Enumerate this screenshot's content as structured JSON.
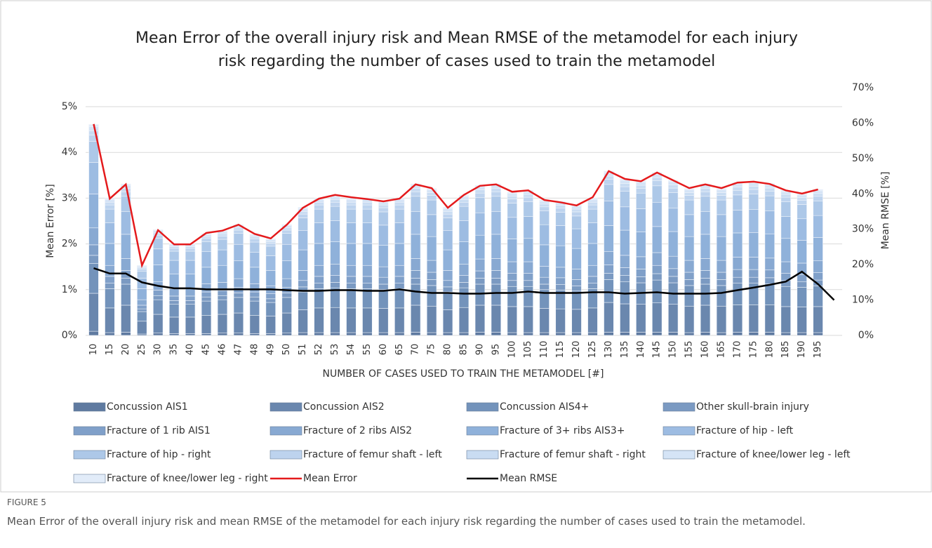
{
  "chart_data": {
    "type": "stacked_bar_line",
    "title": [
      "Mean Error of the overall injury risk and Mean RMSE of the metamodel for each injury",
      "risk regarding the number of cases used to train the metamodel"
    ],
    "ylabel": "Mean Error [%]",
    "y2label": "Mean RMSE [%]",
    "xlabel": "NUMBER OF CASES USED TO TRAIN THE METAMODEL [#]",
    "categories": [
      "10",
      "15",
      "20",
      "25",
      "30",
      "35",
      "40",
      "45",
      "46",
      "47",
      "48",
      "49",
      "50",
      "51",
      "52",
      "53",
      "54",
      "55",
      "60",
      "65",
      "70",
      "75",
      "80",
      "85",
      "90",
      "95",
      "100",
      "105",
      "110",
      "115",
      "120",
      "125",
      "130",
      "135",
      "140",
      "145",
      "150",
      "155",
      "160",
      "165",
      "170",
      "175",
      "180",
      "185",
      "190",
      "195",
      null
    ],
    "ylim": [
      0,
      5
    ],
    "yticks": [
      {
        "value": 0,
        "label": "0%"
      },
      {
        "value": 1,
        "label": "1%"
      },
      {
        "value": 2,
        "label": "2%"
      },
      {
        "value": 3,
        "label": "3%"
      },
      {
        "value": 4,
        "label": "4%"
      },
      {
        "value": 5,
        "label": "5%"
      }
    ],
    "y2lim": [
      0,
      70
    ],
    "y2ticks": [
      {
        "value": 0,
        "label": "0%"
      },
      {
        "value": 10,
        "label": "10%"
      },
      {
        "value": 20,
        "label": "20%"
      },
      {
        "value": 30,
        "label": "30%"
      },
      {
        "value": 40,
        "label": "40%"
      },
      {
        "value": 50,
        "label": "50%"
      },
      {
        "value": 60,
        "label": "60%"
      },
      {
        "value": 70,
        "label": "70%"
      }
    ],
    "series": [
      {
        "name": "Concussion AIS1",
        "color": "#5f7aa0",
        "values": [
          0.09,
          0.06,
          0.07,
          0.03,
          0.05,
          0.04,
          0.04,
          0.04,
          0.05,
          0.05,
          0.04,
          0.04,
          0.05,
          0.06,
          0.06,
          0.06,
          0.06,
          0.06,
          0.06,
          0.06,
          0.07,
          0.06,
          0.06,
          0.06,
          0.07,
          0.07,
          0.06,
          0.06,
          0.06,
          0.06,
          0.06,
          0.06,
          0.07,
          0.07,
          0.07,
          0.07,
          0.07,
          0.06,
          0.07,
          0.06,
          0.07,
          0.07,
          0.07,
          0.06,
          0.06,
          0.06,
          null
        ]
      },
      {
        "name": "Concussion AIS2",
        "color": "#6a87ae",
        "values": [
          0.83,
          0.54,
          0.59,
          0.28,
          0.41,
          0.36,
          0.36,
          0.4,
          0.41,
          0.44,
          0.4,
          0.38,
          0.44,
          0.5,
          0.54,
          0.55,
          0.54,
          0.54,
          0.53,
          0.54,
          0.59,
          0.58,
          0.5,
          0.55,
          0.59,
          0.59,
          0.57,
          0.57,
          0.53,
          0.52,
          0.51,
          0.54,
          0.65,
          0.62,
          0.61,
          0.64,
          0.61,
          0.58,
          0.59,
          0.58,
          0.6,
          0.6,
          0.6,
          0.57,
          0.56,
          0.57,
          null
        ]
      },
      {
        "name": "Concussion AIS4+",
        "color": "#7393bb",
        "values": [
          0.65,
          0.42,
          0.46,
          0.21,
          0.32,
          0.28,
          0.28,
          0.31,
          0.32,
          0.34,
          0.31,
          0.3,
          0.34,
          0.39,
          0.42,
          0.43,
          0.42,
          0.42,
          0.41,
          0.42,
          0.46,
          0.45,
          0.39,
          0.43,
          0.46,
          0.46,
          0.44,
          0.44,
          0.41,
          0.41,
          0.4,
          0.42,
          0.5,
          0.48,
          0.47,
          0.5,
          0.47,
          0.45,
          0.46,
          0.45,
          0.47,
          0.47,
          0.46,
          0.44,
          0.43,
          0.45,
          null
        ]
      },
      {
        "name": "Other skull-brain injury",
        "color": "#7b9ac2",
        "values": [
          0.18,
          0.12,
          0.13,
          0.06,
          0.09,
          0.08,
          0.08,
          0.09,
          0.09,
          0.1,
          0.09,
          0.08,
          0.1,
          0.11,
          0.12,
          0.12,
          0.12,
          0.12,
          0.12,
          0.12,
          0.13,
          0.13,
          0.11,
          0.12,
          0.13,
          0.13,
          0.13,
          0.13,
          0.12,
          0.12,
          0.11,
          0.12,
          0.14,
          0.14,
          0.13,
          0.14,
          0.14,
          0.13,
          0.13,
          0.13,
          0.13,
          0.13,
          0.13,
          0.13,
          0.12,
          0.13,
          null
        ]
      },
      {
        "name": "Fracture of 1 rib AIS1",
        "color": "#80a0c9",
        "values": [
          0.23,
          0.15,
          0.17,
          0.08,
          0.12,
          0.1,
          0.1,
          0.11,
          0.11,
          0.12,
          0.11,
          0.11,
          0.12,
          0.14,
          0.15,
          0.15,
          0.15,
          0.15,
          0.15,
          0.15,
          0.17,
          0.16,
          0.14,
          0.15,
          0.16,
          0.17,
          0.16,
          0.16,
          0.15,
          0.15,
          0.14,
          0.15,
          0.18,
          0.17,
          0.17,
          0.18,
          0.17,
          0.16,
          0.17,
          0.16,
          0.17,
          0.17,
          0.17,
          0.16,
          0.16,
          0.16,
          null
        ]
      },
      {
        "name": "Fracture of 2 ribs AIS2",
        "color": "#88a9d2",
        "values": [
          0.37,
          0.24,
          0.26,
          0.12,
          0.18,
          0.16,
          0.16,
          0.18,
          0.18,
          0.19,
          0.18,
          0.17,
          0.19,
          0.22,
          0.24,
          0.25,
          0.24,
          0.24,
          0.23,
          0.24,
          0.26,
          0.26,
          0.22,
          0.25,
          0.26,
          0.26,
          0.25,
          0.25,
          0.24,
          0.23,
          0.23,
          0.24,
          0.29,
          0.27,
          0.27,
          0.28,
          0.27,
          0.26,
          0.26,
          0.26,
          0.27,
          0.27,
          0.26,
          0.25,
          0.25,
          0.26,
          null
        ]
      },
      {
        "name": "Fracture of 3+ ribs AIS3+",
        "color": "#8fb1da",
        "values": [
          0.74,
          0.48,
          0.53,
          0.24,
          0.37,
          0.32,
          0.32,
          0.36,
          0.37,
          0.39,
          0.36,
          0.34,
          0.39,
          0.45,
          0.48,
          0.49,
          0.48,
          0.48,
          0.47,
          0.48,
          0.53,
          0.52,
          0.45,
          0.49,
          0.52,
          0.53,
          0.5,
          0.51,
          0.47,
          0.47,
          0.45,
          0.48,
          0.57,
          0.55,
          0.54,
          0.57,
          0.54,
          0.52,
          0.53,
          0.52,
          0.53,
          0.54,
          0.53,
          0.51,
          0.5,
          0.51,
          null
        ]
      },
      {
        "name": "Fracture of hip - left",
        "color": "#9dbce2",
        "values": [
          0.69,
          0.45,
          0.5,
          0.23,
          0.35,
          0.3,
          0.3,
          0.34,
          0.34,
          0.36,
          0.33,
          0.32,
          0.36,
          0.42,
          0.45,
          0.46,
          0.45,
          0.45,
          0.44,
          0.45,
          0.5,
          0.48,
          0.42,
          0.46,
          0.49,
          0.5,
          0.47,
          0.48,
          0.44,
          0.44,
          0.43,
          0.45,
          0.54,
          0.51,
          0.51,
          0.53,
          0.51,
          0.48,
          0.5,
          0.48,
          0.5,
          0.5,
          0.5,
          0.48,
          0.47,
          0.48,
          null
        ]
      },
      {
        "name": "Fracture of hip - right",
        "color": "#adc8e8",
        "values": [
          0.46,
          0.3,
          0.33,
          0.15,
          0.23,
          0.2,
          0.2,
          0.22,
          0.23,
          0.24,
          0.22,
          0.21,
          0.24,
          0.28,
          0.3,
          0.31,
          0.3,
          0.3,
          0.29,
          0.3,
          0.33,
          0.32,
          0.28,
          0.31,
          0.33,
          0.33,
          0.31,
          0.32,
          0.3,
          0.29,
          0.28,
          0.3,
          0.36,
          0.34,
          0.34,
          0.36,
          0.34,
          0.32,
          0.33,
          0.32,
          0.33,
          0.34,
          0.33,
          0.32,
          0.31,
          0.32,
          null
        ]
      },
      {
        "name": "Fracture of femur shaft - left",
        "color": "#bdd3ee",
        "values": [
          0.14,
          0.09,
          0.1,
          0.05,
          0.07,
          0.06,
          0.06,
          0.07,
          0.07,
          0.07,
          0.07,
          0.06,
          0.07,
          0.08,
          0.09,
          0.09,
          0.09,
          0.09,
          0.09,
          0.09,
          0.1,
          0.1,
          0.08,
          0.09,
          0.1,
          0.1,
          0.09,
          0.1,
          0.09,
          0.09,
          0.09,
          0.09,
          0.11,
          0.1,
          0.1,
          0.11,
          0.1,
          0.1,
          0.1,
          0.1,
          0.1,
          0.1,
          0.1,
          0.1,
          0.09,
          0.1,
          null
        ]
      },
      {
        "name": "Fracture of femur shaft - right",
        "color": "#c9dcf2",
        "values": [
          0.09,
          0.06,
          0.07,
          0.03,
          0.05,
          0.04,
          0.04,
          0.04,
          0.05,
          0.05,
          0.04,
          0.04,
          0.05,
          0.06,
          0.06,
          0.06,
          0.06,
          0.06,
          0.06,
          0.06,
          0.07,
          0.06,
          0.06,
          0.06,
          0.07,
          0.07,
          0.06,
          0.06,
          0.06,
          0.06,
          0.06,
          0.06,
          0.07,
          0.07,
          0.07,
          0.07,
          0.07,
          0.06,
          0.07,
          0.06,
          0.07,
          0.07,
          0.07,
          0.06,
          0.06,
          0.06,
          null
        ]
      },
      {
        "name": "Fracture of knee/lower leg - left",
        "color": "#d5e4f6",
        "values": [
          0.09,
          0.06,
          0.07,
          0.03,
          0.05,
          0.04,
          0.04,
          0.04,
          0.05,
          0.05,
          0.04,
          0.04,
          0.05,
          0.06,
          0.06,
          0.06,
          0.06,
          0.06,
          0.06,
          0.06,
          0.07,
          0.06,
          0.06,
          0.06,
          0.07,
          0.07,
          0.06,
          0.06,
          0.06,
          0.06,
          0.06,
          0.06,
          0.07,
          0.07,
          0.07,
          0.07,
          0.07,
          0.06,
          0.07,
          0.06,
          0.07,
          0.07,
          0.07,
          0.06,
          0.06,
          0.06,
          null
        ]
      },
      {
        "name": "Fracture of knee/lower leg - right",
        "color": "#e2ecf9",
        "values": [
          0.05,
          0.03,
          0.03,
          0.02,
          0.02,
          0.02,
          0.02,
          0.02,
          0.02,
          0.02,
          0.02,
          0.02,
          0.02,
          0.03,
          0.03,
          0.03,
          0.03,
          0.03,
          0.03,
          0.03,
          0.03,
          0.03,
          0.03,
          0.03,
          0.03,
          0.03,
          0.03,
          0.03,
          0.03,
          0.03,
          0.03,
          0.03,
          0.04,
          0.03,
          0.03,
          0.04,
          0.03,
          0.03,
          0.03,
          0.03,
          0.03,
          0.03,
          0.03,
          0.03,
          0.03,
          0.03,
          null
        ]
      }
    ],
    "lines": [
      {
        "name": "Mean Error",
        "color": "#e41a1c",
        "axis": "y",
        "values": [
          4.62,
          2.99,
          3.3,
          1.53,
          2.3,
          1.99,
          1.99,
          2.24,
          2.29,
          2.42,
          2.22,
          2.12,
          2.42,
          2.79,
          2.99,
          3.07,
          3.02,
          2.98,
          2.93,
          2.99,
          3.3,
          3.22,
          2.79,
          3.07,
          3.27,
          3.3,
          3.14,
          3.17,
          2.96,
          2.91,
          2.84,
          3.02,
          3.59,
          3.42,
          3.37,
          3.56,
          3.39,
          3.22,
          3.3,
          3.22,
          3.34,
          3.36,
          3.31,
          3.17,
          3.1,
          3.19,
          null
        ]
      },
      {
        "name": "Mean RMSE",
        "color": "#000000",
        "axis": "y2",
        "values": [
          19,
          17.5,
          17.5,
          15,
          14,
          13.3,
          13.3,
          13,
          13,
          13,
          13,
          13,
          12.8,
          12.6,
          12.6,
          12.8,
          12.8,
          12.6,
          12.6,
          13,
          12.4,
          12,
          12,
          11.8,
          11.8,
          12,
          12,
          12.4,
          12,
          12,
          12,
          12.2,
          12.2,
          11.8,
          12,
          12.2,
          11.8,
          11.8,
          11.8,
          12,
          12.8,
          13.5,
          14.3,
          15.2,
          18,
          14.5,
          10
        ]
      }
    ]
  },
  "figure_label": "FIGURE 5",
  "caption": "Mean Error of the overall injury risk and mean RMSE of the metamodel for each injury risk regarding the number of cases used to train the metamodel."
}
